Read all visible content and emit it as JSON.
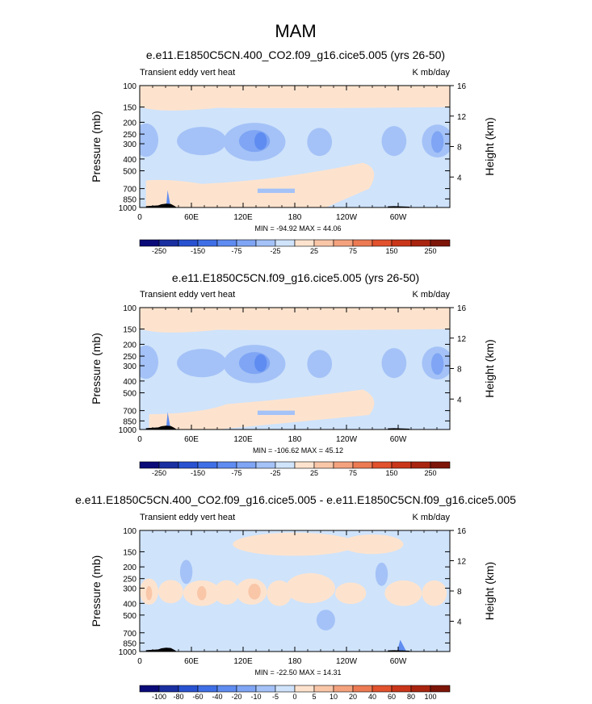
{
  "main_title": "MAM",
  "chart_data": [
    {
      "type": "heatmap",
      "title": "e.e11.E1850C5CN.400_CO2.f09_g16.cice5.005 (yrs 26-50)",
      "left_label": "Transient eddy vert heat",
      "right_label": "K mb/day",
      "ylabel": "Pressure (mb)",
      "y2label": "Height (km)",
      "x_ticks": [
        "0",
        "60E",
        "120E",
        "180",
        "120W",
        "60W"
      ],
      "y_ticks": [
        "100",
        "150",
        "200",
        "250",
        "300",
        "400",
        "500",
        "700",
        "850",
        "1000"
      ],
      "y2_ticks": [
        "16",
        "12",
        "8",
        "4"
      ],
      "stats": "MIN = -94.92  MAX = 44.06",
      "colorbar_labels": [
        "-250",
        "-150",
        "-75",
        "-25",
        "25",
        "75",
        "150",
        "250"
      ],
      "min": -94.92,
      "max": 44.06
    },
    {
      "type": "heatmap",
      "title": "e.e11.E1850C5CN.f09_g16.cice5.005 (yrs 26-50)",
      "left_label": "Transient eddy vert heat",
      "right_label": "K mb/day",
      "ylabel": "Pressure (mb)",
      "y2label": "Height (km)",
      "x_ticks": [
        "0",
        "60E",
        "120E",
        "180",
        "120W",
        "60W"
      ],
      "y_ticks": [
        "100",
        "150",
        "200",
        "250",
        "300",
        "400",
        "500",
        "700",
        "850",
        "1000"
      ],
      "y2_ticks": [
        "16",
        "12",
        "8",
        "4"
      ],
      "stats": "MIN = -106.62  MAX =  45.12",
      "colorbar_labels": [
        "-250",
        "-150",
        "-75",
        "-25",
        "25",
        "75",
        "150",
        "250"
      ],
      "min": -106.62,
      "max": 45.12
    },
    {
      "type": "heatmap",
      "title": "e.e11.E1850C5CN.400_CO2.f09_g16.cice5.005 - e.e11.E1850C5CN.f09_g16.cice5.005",
      "left_label": "Transient eddy vert heat",
      "right_label": "K mb/day",
      "ylabel": "Pressure (mb)",
      "y2label": "Height (km)",
      "x_ticks": [
        "0",
        "60E",
        "120E",
        "180",
        "120W",
        "60W"
      ],
      "y_ticks": [
        "100",
        "150",
        "200",
        "250",
        "300",
        "400",
        "500",
        "700",
        "850",
        "1000"
      ],
      "y2_ticks": [
        "16",
        "12",
        "8",
        "4"
      ],
      "stats": "MIN = -22.50  MAX =  14.31",
      "colorbar_labels": [
        "-100",
        "-80",
        "-60",
        "-40",
        "-20",
        "-10",
        "-5",
        "0",
        "5",
        "10",
        "20",
        "40",
        "60",
        "80",
        "100"
      ],
      "min": -22.5,
      "max": 14.31
    }
  ],
  "colors": {
    "div16": [
      "#0a0a78",
      "#1a2fa0",
      "#2852d0",
      "#3f6fe6",
      "#5f8cf0",
      "#7fa5f4",
      "#a4c2f7",
      "#cfe3fb",
      "#fde3ce",
      "#f9c6a8",
      "#f4a27e",
      "#ec7a53",
      "#e1522d",
      "#c9361a",
      "#a8240f",
      "#7d1508"
    ],
    "diff16": [
      "#0a0a78",
      "#1a2fa0",
      "#2852d0",
      "#3f6fe6",
      "#5f8cf0",
      "#7fa5f4",
      "#a4c2f7",
      "#cfe3fb",
      "#fde3ce",
      "#f9c6a8",
      "#f4a27e",
      "#ec7a53",
      "#e1522d",
      "#c9361a",
      "#a8240f",
      "#7d1508"
    ],
    "light_blue": "#cfe3fb",
    "mid_blue": "#a4c2f7",
    "dark_blue": "#7fa5f4",
    "deep_blue": "#5f8cf0",
    "light_orange": "#fde3ce",
    "mid_orange": "#f9c6a8",
    "terrain": "#000000"
  }
}
